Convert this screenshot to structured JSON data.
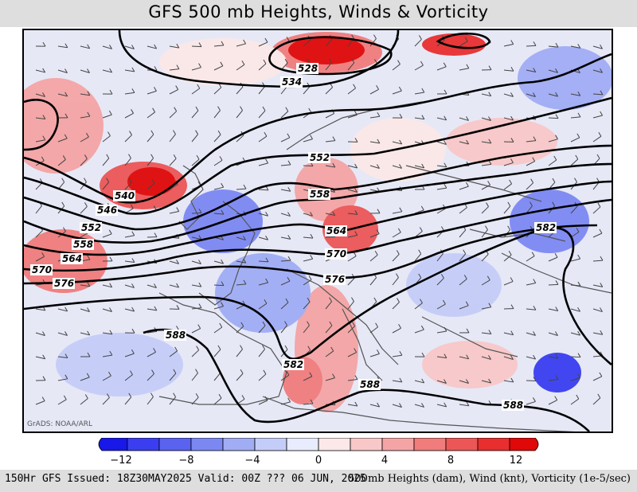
{
  "header": {
    "title": "GFS 500 mb Heights, Winds & Vorticity"
  },
  "map": {
    "credit": "GrADS: NOAA/ARL",
    "height_contour_labels": [
      "528",
      "534",
      "540",
      "546",
      "552",
      "552",
      "558",
      "558",
      "564",
      "564",
      "570",
      "570",
      "576",
      "576",
      "582",
      "582",
      "588",
      "588",
      "588"
    ]
  },
  "colorbar": {
    "tick_labels": [
      "−12",
      "−8",
      "−4",
      "0",
      "4",
      "8",
      "12"
    ],
    "colors": [
      "#1818e8",
      "#3a3ef0",
      "#5a62f0",
      "#7c88f2",
      "#a0acf4",
      "#c4ccf8",
      "#e8ecfc",
      "#fce8e8",
      "#f8c8c8",
      "#f4a4a4",
      "#f07c7c",
      "#ec5656",
      "#e82e2e",
      "#e00808"
    ]
  },
  "footer": {
    "left": "150Hr GFS Issued: 18Z30MAY2025 Valid: 00Z ??? 06 JUN, 2025",
    "right": "500mb Heights (dam), Wind (knt), Vorticity (1e-5/sec)"
  },
  "colors": {
    "background_frame": "#dedede",
    "contour": "#000000",
    "coastline": "#555555"
  }
}
